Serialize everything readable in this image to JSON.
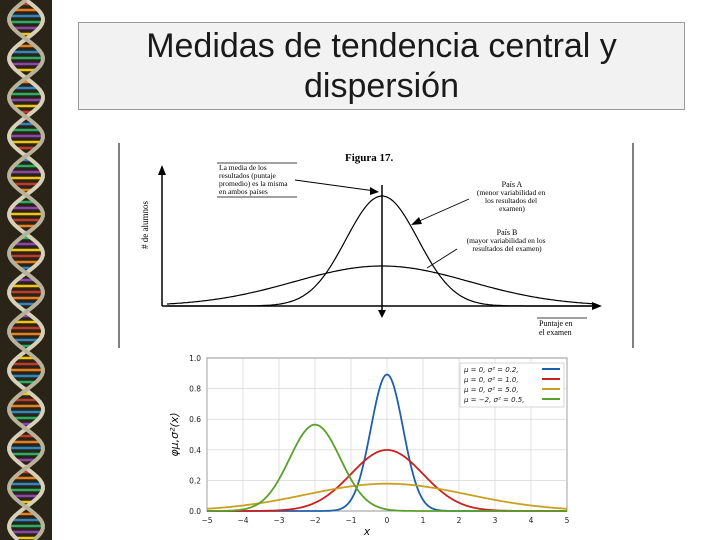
{
  "slide": {
    "title": "Medidas de tendencia central y dispersión"
  },
  "figure_top": {
    "heading": "Figura 17.",
    "y_axis_label": "# de alumnos",
    "x_axis_label_line1": "Puntaje en",
    "x_axis_label_line2": "el examen",
    "annotation_center_lines": [
      "La media de los",
      "resultados (puntaje",
      "promedio) es la misma",
      "en ambos países"
    ],
    "annotation_a_title": "País A",
    "annotation_a_lines": [
      "(menor variabilidad en",
      "los resultados del",
      "examen)"
    ],
    "annotation_b_title": "País B",
    "annotation_b_lines": [
      "(mayor variabilidad en los",
      "resultados del examen)"
    ]
  },
  "chart_data": {
    "type": "line",
    "title": "",
    "xlabel": "x",
    "ylabel": "φμ,σ²(x)",
    "xlim": [
      -5,
      5
    ],
    "ylim": [
      0,
      1.0
    ],
    "x_ticks": [
      -5,
      -4,
      -3,
      -2,
      -1,
      0,
      1,
      2,
      3,
      4,
      5
    ],
    "y_ticks": [
      0.0,
      0.2,
      0.4,
      0.6,
      0.8,
      1.0
    ],
    "grid": true,
    "legend_position": "top-right",
    "series": [
      {
        "name": "μ = 0,   σ² = 0.2,",
        "mu": 0,
        "variance": 0.2,
        "color": "#1f5fa8"
      },
      {
        "name": "μ = 0,   σ² = 1.0,",
        "mu": 0,
        "variance": 1.0,
        "color": "#cc1f1f"
      },
      {
        "name": "μ = 0,   σ² = 5.0,",
        "mu": 0,
        "variance": 5.0,
        "color": "#c9a020"
      },
      {
        "name": "μ = −2,  σ² = 0.5,",
        "mu": -2,
        "variance": 0.5,
        "color": "#5aa02c"
      }
    ]
  }
}
